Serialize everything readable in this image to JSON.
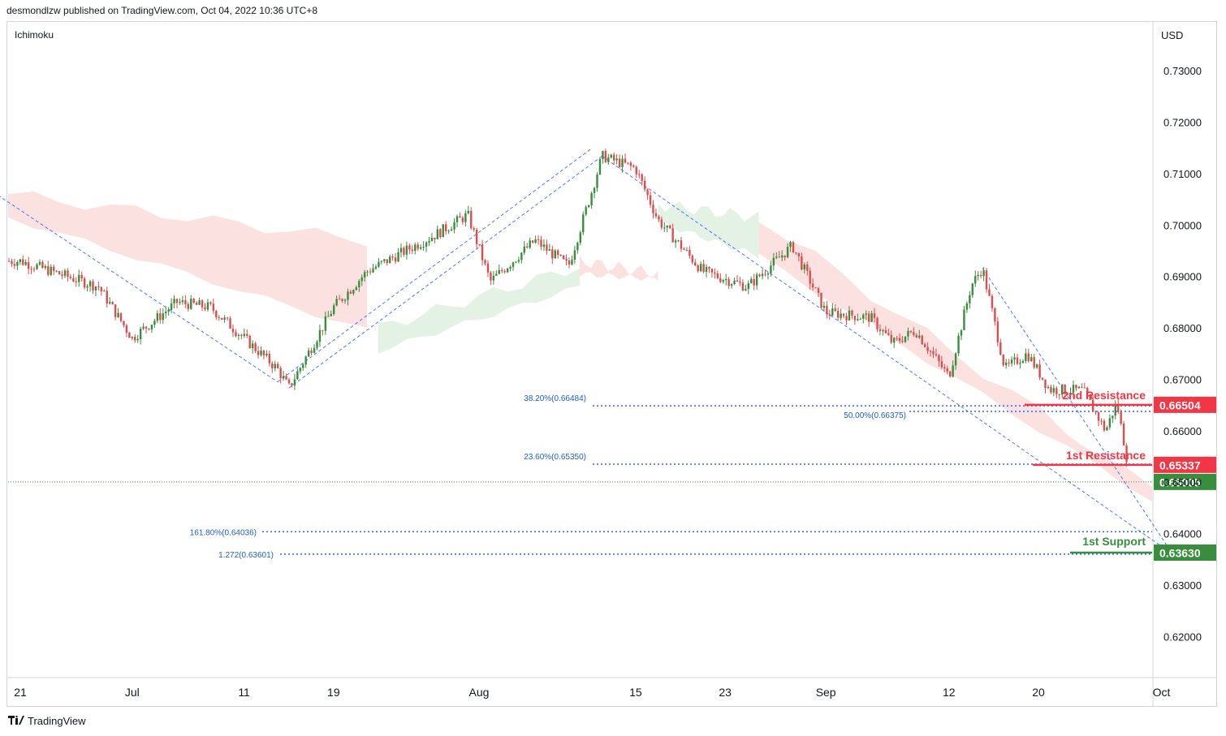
{
  "header": {
    "published": "desmondlzw published on TradingView.com, Oct 04, 2022 10:36 UTC+8"
  },
  "indicator": "Ichimoku",
  "currency": "USD",
  "footer": {
    "brand": "TradingView",
    "logo": "tradingview-logo-icon"
  },
  "colors": {
    "up": "#388e3c",
    "down": "#e04b4b",
    "resistance": "#f23645",
    "support": "#388e3c",
    "fib": "#2962ff",
    "cloud_bear": "#fce1e1",
    "cloud_bull": "#e4f2e6"
  },
  "chart_data": {
    "type": "candlestick",
    "title": "",
    "ylim": [
      0.612,
      0.7395
    ],
    "y_ticks": [
      "0.73000",
      "0.72000",
      "0.71000",
      "0.70000",
      "0.69000",
      "0.68000",
      "0.67000",
      "0.66000",
      "0.65000",
      "0.64000",
      "0.63000",
      "0.62000"
    ],
    "y_tick_values": [
      0.73,
      0.72,
      0.71,
      0.7,
      0.69,
      0.68,
      0.67,
      0.66,
      0.65,
      0.64,
      0.63,
      0.62
    ],
    "x_ticks": [
      {
        "label": "21",
        "date": "2022-06-21"
      },
      {
        "label": "Jul",
        "date": "2022-07-01"
      },
      {
        "label": "11",
        "date": "2022-07-11"
      },
      {
        "label": "19",
        "date": "2022-07-19"
      },
      {
        "label": "Aug",
        "date": "2022-08-01"
      },
      {
        "label": "15",
        "date": "2022-08-15"
      },
      {
        "label": "23",
        "date": "2022-08-23"
      },
      {
        "label": "Sep",
        "date": "2022-09-01"
      },
      {
        "label": "12",
        "date": "2022-09-12"
      },
      {
        "label": "20",
        "date": "2022-09-20"
      },
      {
        "label": "Oct",
        "date": "2022-10-01"
      }
    ],
    "price_anchors": [
      {
        "date": "2022-06-21",
        "price": 0.693
      },
      {
        "date": "2022-06-28",
        "price": 0.688
      },
      {
        "date": "2022-07-01",
        "price": 0.678
      },
      {
        "date": "2022-07-05",
        "price": 0.685
      },
      {
        "date": "2022-07-08",
        "price": 0.684
      },
      {
        "date": "2022-07-14",
        "price": 0.672
      },
      {
        "date": "2022-07-15",
        "price": 0.6683
      },
      {
        "date": "2022-07-19",
        "price": 0.684
      },
      {
        "date": "2022-07-22",
        "price": 0.691
      },
      {
        "date": "2022-07-28",
        "price": 0.698
      },
      {
        "date": "2022-07-31",
        "price": 0.702
      },
      {
        "date": "2022-08-02",
        "price": 0.689
      },
      {
        "date": "2022-08-06",
        "price": 0.697
      },
      {
        "date": "2022-08-09",
        "price": 0.692
      },
      {
        "date": "2022-08-11",
        "price": 0.706
      },
      {
        "date": "2022-08-12",
        "price": 0.7134
      },
      {
        "date": "2022-08-15",
        "price": 0.711
      },
      {
        "date": "2022-08-17",
        "price": 0.701
      },
      {
        "date": "2022-08-21",
        "price": 0.691
      },
      {
        "date": "2022-08-25",
        "price": 0.688
      },
      {
        "date": "2022-08-29",
        "price": 0.696
      },
      {
        "date": "2022-09-01",
        "price": 0.683
      },
      {
        "date": "2022-09-05",
        "price": 0.682
      },
      {
        "date": "2022-09-07",
        "price": 0.677
      },
      {
        "date": "2022-09-09",
        "price": 0.6795
      },
      {
        "date": "2022-09-12",
        "price": 0.6705
      },
      {
        "date": "2022-09-14",
        "price": 0.6883
      },
      {
        "date": "2022-09-15",
        "price": 0.6916
      },
      {
        "date": "2022-09-17",
        "price": 0.672
      },
      {
        "date": "2022-09-19",
        "price": 0.675
      },
      {
        "date": "2022-09-21",
        "price": 0.668
      },
      {
        "date": "2022-09-24",
        "price": 0.6678
      },
      {
        "date": "2022-09-26",
        "price": 0.66
      },
      {
        "date": "2022-09-27",
        "price": 0.6655
      },
      {
        "date": "2022-09-28",
        "price": 0.6535
      },
      {
        "date": "2022-09-30",
        "price": 0.6445
      },
      {
        "date": "2022-10-01",
        "price": 0.6375
      },
      {
        "date": "2022-10-02",
        "price": 0.653
      },
      {
        "date": "2022-10-03",
        "price": 0.6515
      },
      {
        "date": "2022-10-04",
        "price": 0.6405
      },
      {
        "date": "2022-10-05",
        "price": 0.6525
      },
      {
        "date": "2022-10-06",
        "price": 0.65005
      }
    ],
    "ichimoku_cloud": [
      {
        "from": "2022-06-19",
        "to": "2022-07-22",
        "top": [
          0.706,
          0.697
        ],
        "bottom": [
          0.7015,
          0.6795
        ],
        "trend": "bearish"
      },
      {
        "from": "2022-07-23",
        "to": "2022-08-10",
        "top": [
          0.68,
          0.692
        ],
        "bottom": [
          0.6755,
          0.688
        ],
        "trend": "bullish"
      },
      {
        "from": "2022-08-10",
        "to": "2022-08-17",
        "top": [
          0.693,
          0.6905
        ],
        "bottom": [
          0.6905,
          0.6895
        ],
        "trend": "bearish"
      },
      {
        "from": "2022-08-17",
        "to": "2022-08-26",
        "top": [
          0.704,
          0.7015
        ],
        "bottom": [
          0.7005,
          0.694
        ],
        "trend": "bullish"
      },
      {
        "from": "2022-08-26",
        "to": "2022-10-08",
        "top": [
          0.7015,
          0.6485
        ],
        "bottom": [
          0.694,
          0.6465
        ],
        "trend": "bearish"
      }
    ],
    "levels": [
      {
        "name": "2nd Resistance",
        "value": 0.66504,
        "label": "0.66504",
        "kind": "resistance"
      },
      {
        "name": "1st Resistance",
        "value": 0.65337,
        "label": "0.65337",
        "kind": "resistance"
      },
      {
        "name": "current",
        "value": 0.65005,
        "label": "0.65005",
        "kind": "current"
      },
      {
        "name": "1st Support",
        "value": 0.6363,
        "label": "0.63630",
        "kind": "support"
      }
    ],
    "fibonacci": [
      {
        "label": "38.20%(0.66484)",
        "value": 0.66484
      },
      {
        "label": "50.00%(0.66375)",
        "value": 0.66375
      },
      {
        "label": "23.60%(0.65350)",
        "value": 0.6535
      },
      {
        "label": "161.80%(0.64036)",
        "value": 0.64036
      },
      {
        "label": "1.272(0.63601)",
        "value": 0.63601
      }
    ],
    "trendlines": [
      {
        "from": {
          "date": "2022-06-19",
          "price": 0.7058
        },
        "to": {
          "date": "2022-07-14",
          "price": 0.6695
        }
      },
      {
        "from": {
          "date": "2022-07-14",
          "price": 0.6695
        },
        "to": {
          "date": "2022-08-11",
          "price": 0.7148
        }
      },
      {
        "from": {
          "date": "2022-07-15",
          "price": 0.6683
        },
        "to": {
          "date": "2022-08-12",
          "price": 0.7134
        }
      },
      {
        "from": {
          "date": "2022-08-12",
          "price": 0.7134
        },
        "to": {
          "date": "2022-10-02",
          "price": 0.636
        }
      },
      {
        "from": {
          "date": "2022-09-15",
          "price": 0.6916
        },
        "to": {
          "date": "2022-10-02",
          "price": 0.636
        }
      }
    ]
  }
}
